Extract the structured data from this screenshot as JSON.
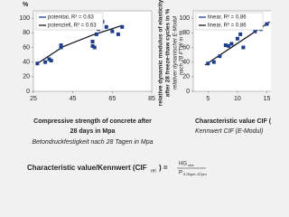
{
  "chart_data": [
    {
      "type": "scatter",
      "ylabel": "%",
      "x": [
        27,
        31,
        33,
        34,
        39,
        39,
        52,
        54,
        55,
        55,
        56,
        57,
        58,
        60,
        62,
        65,
        68,
        70
      ],
      "values": [
        38,
        40,
        44,
        42,
        60,
        63,
        97,
        95,
        68,
        62,
        60,
        78,
        85,
        95,
        88,
        82,
        78,
        88
      ],
      "color": "#1f3e8a",
      "trend": {
        "x": [
          27,
          40,
          55,
          70
        ],
        "values": [
          38,
          61,
          77,
          90
        ],
        "color": "#111827"
      },
      "legend": [
        "potential, R² = 0.63",
        "potenziell, R² = 0.63"
      ],
      "legend_colors": [
        "#1f3e8a",
        "#111827"
      ],
      "xlim": [
        25,
        85
      ],
      "ylim": [
        0,
        110
      ],
      "xticks": [
        25,
        45,
        65,
        85
      ],
      "yticks": [
        0,
        20,
        40,
        60,
        80,
        100
      ],
      "xlabel": [
        "Compressive strength of concrete after",
        "28 days in Mpa"
      ],
      "xlabel_de": "Betondruckfestigkeit nach 28 Tagen in Mpa"
    },
    {
      "type": "scatter",
      "ylabel": [
        "relative dynamic modulus of elasticity",
        "after 28 freeze-thaw cycles in %"
      ],
      "ylabel_de": [
        "relativer dynamischer E-Modul",
        "nach 28 FTW in %"
      ],
      "x": [
        5,
        6,
        7,
        8,
        8.5,
        9,
        10,
        10.5,
        11,
        13,
        14,
        15
      ],
      "values": [
        38,
        40,
        48,
        63,
        62,
        65,
        72,
        78,
        60,
        82,
        85,
        92
      ],
      "color": "#1f3e8a",
      "trend": {
        "x": [
          4.5,
          15.5
        ],
        "values": [
          36,
          95
        ],
        "color": "#111827"
      },
      "legend": [
        "linear, R² = 0.86",
        "linear, R² = 0.86"
      ],
      "legend_colors": [
        "#1f3e8a",
        "#111827"
      ],
      "xlim": [
        2.5,
        16
      ],
      "ylim": [
        0,
        110
      ],
      "xticks": [
        5,
        10,
        15
      ],
      "yticks": [
        0,
        20,
        40,
        60,
        80,
        100
      ],
      "xlabel": [
        "Characteristic value CIF (E-Modul)"
      ],
      "xlabel_de": "Kennwert CIF (E-Modul)"
    }
  ],
  "formula": {
    "lead": "Characteristic value/Kennwert (CIF",
    "sub": "rel",
    "eq": ") =",
    "num": "HG",
    "num_sub": "cha",
    "den": "P",
    "den_sub": "0.05µm–57µm"
  }
}
